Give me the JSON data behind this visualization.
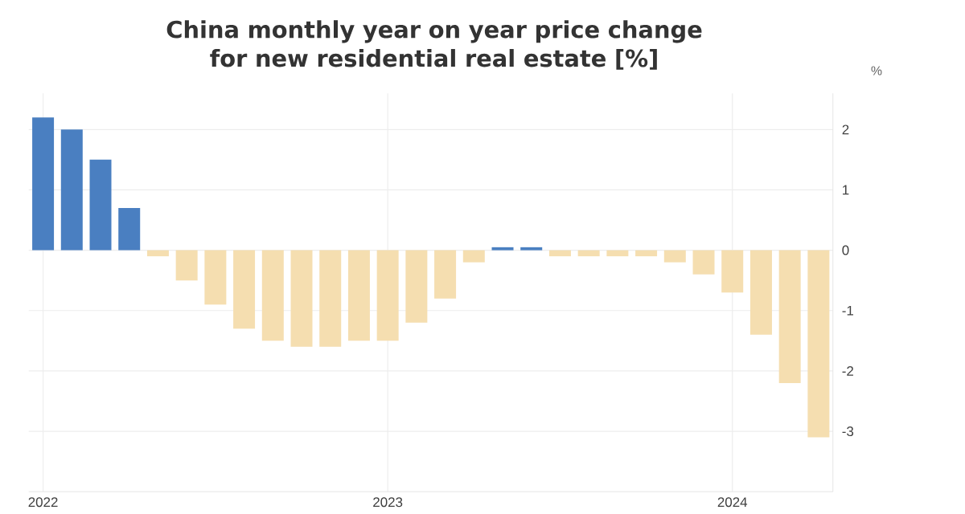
{
  "chart_data": {
    "type": "bar",
    "title": "China monthly year on year price change for new residential real estate [%]",
    "ylabel": "%",
    "x": [
      "2022-01",
      "2022-02",
      "2022-03",
      "2022-04",
      "2022-05",
      "2022-06",
      "2022-07",
      "2022-08",
      "2022-09",
      "2022-10",
      "2022-11",
      "2022-12",
      "2023-01",
      "2023-02",
      "2023-03",
      "2023-04",
      "2023-05",
      "2023-06",
      "2023-07",
      "2023-08",
      "2023-09",
      "2023-10",
      "2023-11",
      "2023-12",
      "2024-01",
      "2024-02",
      "2024-03",
      "2024-04"
    ],
    "values": [
      2.2,
      2.0,
      1.5,
      0.7,
      -0.1,
      -0.5,
      -0.9,
      -1.3,
      -1.5,
      -1.6,
      -1.6,
      -1.5,
      -1.5,
      -1.2,
      -0.8,
      -0.2,
      0.05,
      0.05,
      -0.1,
      -0.1,
      -0.1,
      -0.1,
      -0.2,
      -0.4,
      -0.7,
      -1.4,
      -2.2,
      -3.1
    ],
    "colors": [
      "#4a7fc1",
      "#4a7fc1",
      "#4a7fc1",
      "#4a7fc1",
      "#f5deb0",
      "#f5deb0",
      "#f5deb0",
      "#f5deb0",
      "#f5deb0",
      "#f5deb0",
      "#f5deb0",
      "#f5deb0",
      "#f5deb0",
      "#f5deb0",
      "#f5deb0",
      "#f5deb0",
      "#4a7fc1",
      "#4a7fc1",
      "#f5deb0",
      "#f5deb0",
      "#f5deb0",
      "#f5deb0",
      "#f5deb0",
      "#f5deb0",
      "#f5deb0",
      "#f5deb0",
      "#f5deb0",
      "#f5deb0"
    ],
    "xlim": [
      "2021-12-16",
      "2024-04-16"
    ],
    "xticks": [
      {
        "value": "2022-01",
        "label": "2022"
      },
      {
        "value": "2023-01",
        "label": "2023"
      },
      {
        "value": "2024-01",
        "label": "2024"
      }
    ],
    "ylim": [
      -4,
      2.6
    ],
    "yticks": [
      -3,
      -2,
      -1,
      0,
      1,
      2
    ],
    "grid": true
  }
}
